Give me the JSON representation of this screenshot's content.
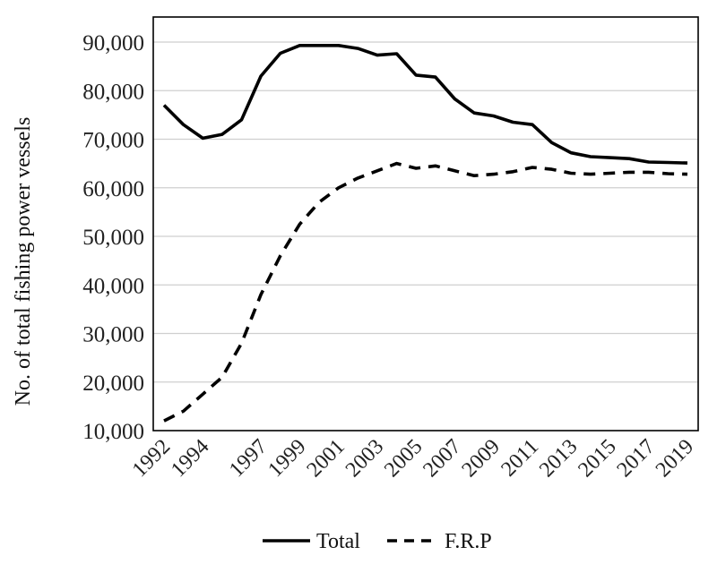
{
  "chart_data": {
    "type": "line",
    "title": "",
    "xlabel": "",
    "ylabel": "No. of total fishing power vessels",
    "ylim": [
      10000,
      90000
    ],
    "yticks": [
      "10,000",
      "20,000",
      "30,000",
      "40,000",
      "50,000",
      "60,000",
      "70,000",
      "80,000",
      "90,000"
    ],
    "xtick_labels": [
      "1992",
      "1994",
      "1997",
      "1999",
      "2001",
      "2003",
      "2005",
      "2007",
      "2009",
      "2011",
      "2013",
      "2015",
      "2017",
      "2019"
    ],
    "x": [
      "1992",
      "1993",
      "1994",
      "1995",
      "1996",
      "1997",
      "1998",
      "1999",
      "2000",
      "2001",
      "2002",
      "2003",
      "2004",
      "2005",
      "2006",
      "2007",
      "2008",
      "2009",
      "2010",
      "2011",
      "2012",
      "2013",
      "2014",
      "2015",
      "2016",
      "2017",
      "2018",
      "2019"
    ],
    "grid": true,
    "legend_position": "bottom",
    "series": [
      {
        "name": "Total",
        "style": "solid",
        "color": "#000000",
        "values": [
          77000,
          73000,
          70200,
          71000,
          74000,
          83000,
          87700,
          89300,
          89300,
          89300,
          88700,
          87300,
          87600,
          83200,
          82800,
          78300,
          75400,
          74800,
          73500,
          73000,
          69300,
          67200,
          66400,
          66200,
          66000,
          65300,
          65200,
          65100
        ]
      },
      {
        "name": "F.R.P",
        "style": "dashed",
        "color": "#000000",
        "values": [
          12000,
          14000,
          17500,
          21000,
          28000,
          38000,
          46000,
          52500,
          57000,
          60000,
          62000,
          63500,
          65000,
          64000,
          64500,
          63500,
          62500,
          62800,
          63300,
          64200,
          63800,
          63000,
          62800,
          63000,
          63200,
          63200,
          62900,
          62800
        ]
      }
    ]
  }
}
